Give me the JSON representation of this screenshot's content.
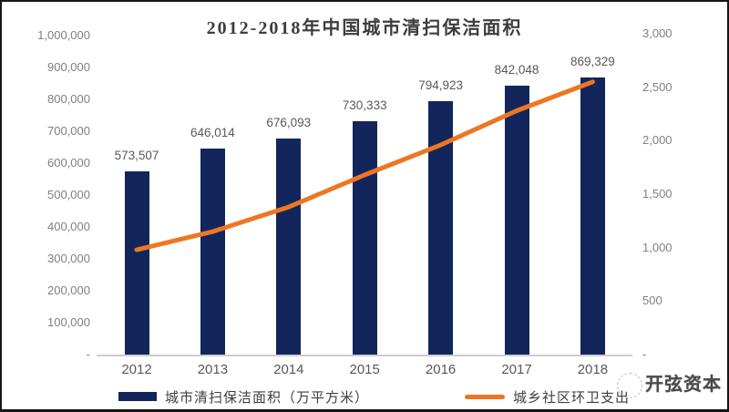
{
  "chart_data": {
    "type": "bar",
    "title": "2012-2018年中国城市清扫保洁面积",
    "categories": [
      "2012",
      "2013",
      "2014",
      "2015",
      "2016",
      "2017",
      "2018"
    ],
    "series": [
      {
        "name": "城市清扫保洁面积（万平方米）",
        "type": "bar",
        "axis": "left",
        "color": "#12265c",
        "values": [
          573507,
          646014,
          676093,
          730333,
          794923,
          842048,
          869329
        ],
        "labels": [
          "573,507",
          "646,014",
          "676,093",
          "730,333",
          "794,923",
          "842,048",
          "869,329"
        ]
      },
      {
        "name": "城乡社区环卫支出",
        "type": "line",
        "axis": "right",
        "color": "#ee7623",
        "values": [
          980,
          1150,
          1380,
          1680,
          1960,
          2280,
          2550
        ]
      }
    ],
    "left_axis": {
      "ticks": [
        "1,000,000",
        "900,000",
        "800,000",
        "700,000",
        "600,000",
        "500,000",
        "400,000",
        "300,000",
        "200,000",
        "100,000",
        "-"
      ],
      "min": 0,
      "max": 1000000
    },
    "right_axis": {
      "ticks": [
        "3,000",
        "2,500",
        "2,000",
        "1,500",
        "1,000",
        "500",
        "-"
      ],
      "min": 0,
      "max": 3000
    },
    "legend_position": "bottom",
    "grid": false
  },
  "watermark": {
    "text": "开弦资本"
  }
}
